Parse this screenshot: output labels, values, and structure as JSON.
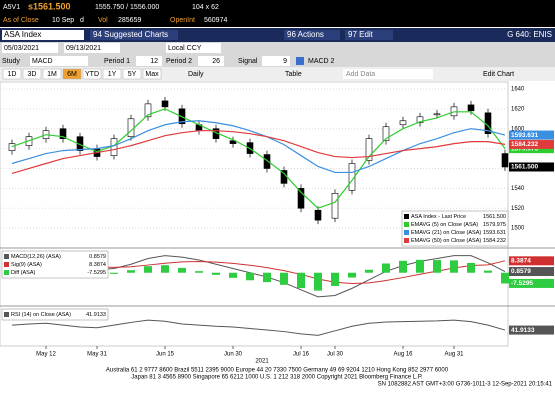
{
  "header": {
    "ticker": "A5V1",
    "last": "s1561.500",
    "bidask": "1555.750 / 1556.000",
    "size": "104 x 62",
    "asof": "As of Close",
    "date": "10 Sep",
    "flag": "d",
    "vol_label": "Vol",
    "vol": "285659",
    "oi_label": "OpenInt",
    "oi": "560974"
  },
  "toolbar": {
    "security": "ASA Index",
    "b1": "94 Suggested Charts",
    "b2": "96 Actions",
    "b3": "97 Edit",
    "right": "G 640: ENIS",
    "start": "05/03/2021",
    "end": "09/13/2021",
    "ccy": "Local CCY",
    "study_label": "Study",
    "study": "MACD",
    "p1_label": "Period 1",
    "p1": "12",
    "p2_label": "Period 2",
    "p2": "26",
    "sig_label": "Signal",
    "sig": "9",
    "study2": "MACD 2",
    "ranges": [
      "1D",
      "3D",
      "1M",
      "6M",
      "YTD",
      "1Y",
      "5Y",
      "Max"
    ],
    "freq": "Daily",
    "table": "Table",
    "add": "Add Data",
    "edit": "Edit Chart"
  },
  "chart_data": [
    {
      "type": "candlestick",
      "name": "ASA Index - Last Price",
      "last_label": "1561.500",
      "x_annotation": "2021",
      "categories": [
        null,
        null,
        "May 12",
        null,
        null,
        "May 31",
        null,
        null,
        null,
        "Jun 15",
        null,
        null,
        null,
        "Jun 30",
        null,
        null,
        null,
        "Jul 16",
        null,
        "Jul 30",
        null,
        null,
        null,
        "Aug 16",
        null,
        null,
        "Aug 31",
        null,
        null,
        null
      ],
      "open": [
        1578,
        1583,
        1590,
        1600,
        1592,
        1580,
        1573,
        1592,
        1612,
        1628,
        1620,
        1604,
        1600,
        1588,
        1586,
        1574,
        1558,
        1540,
        1518,
        1510,
        1538,
        1568,
        1588,
        1604,
        1606,
        1614,
        1613,
        1624,
        1616,
        1575
      ],
      "high": [
        1589,
        1596,
        1602,
        1604,
        1596,
        1584,
        1594,
        1614,
        1629,
        1632,
        1624,
        1608,
        1604,
        1592,
        1590,
        1578,
        1562,
        1544,
        1522,
        1539,
        1569,
        1594,
        1606,
        1612,
        1616,
        1619,
        1626,
        1628,
        1620,
        1579
      ],
      "low": [
        1574,
        1579,
        1586,
        1586,
        1574,
        1568,
        1569,
        1588,
        1608,
        1618,
        1601,
        1594,
        1586,
        1581,
        1571,
        1556,
        1541,
        1516,
        1504,
        1506,
        1534,
        1564,
        1584,
        1600,
        1602,
        1610,
        1609,
        1614,
        1591,
        1557.5
      ],
      "close": [
        1585,
        1592,
        1598,
        1590,
        1578,
        1572,
        1590,
        1610,
        1625,
        1622,
        1605,
        1598,
        1590,
        1585,
        1575,
        1560,
        1545,
        1520,
        1508,
        1535,
        1565,
        1590,
        1602,
        1608,
        1612,
        1615,
        1622,
        1618,
        1595,
        1561.5
      ],
      "series": [
        {
          "name": "EMAVG (5) on Close (ASA)",
          "color": "#2ecc2e",
          "last_label": "1579.975",
          "values": [
            1582,
            1588,
            1594,
            1592,
            1584,
            1577,
            1583,
            1598,
            1614,
            1620,
            1612,
            1604,
            1596,
            1589,
            1580,
            1568,
            1555,
            1536,
            1520,
            1526,
            1548,
            1572,
            1590,
            1600,
            1607,
            1611,
            1617,
            1617,
            1603,
            1579.975
          ]
        },
        {
          "name": "EMAVG (21) on Close (ASA)",
          "color": "#3a8fe0",
          "last_label": "1593.631",
          "values": [
            1565,
            1570,
            1575,
            1578,
            1579,
            1580,
            1583,
            1590,
            1598,
            1604,
            1607,
            1608,
            1606,
            1603,
            1598,
            1592,
            1584,
            1573,
            1562,
            1556,
            1556,
            1562,
            1570,
            1578,
            1585,
            1590,
            1596,
            1600,
            1598,
            1593.631
          ]
        },
        {
          "name": "EMAVG (50) on Close (ASA)",
          "color": "#e03a3a",
          "last_label": "1584.232",
          "values": [
            1555,
            1560,
            1565,
            1570,
            1573,
            1576,
            1579,
            1583,
            1588,
            1593,
            1596,
            1598,
            1598,
            1597,
            1595,
            1592,
            1588,
            1582,
            1576,
            1572,
            1571,
            1572,
            1575,
            1578,
            1580,
            1582,
            1585,
            1587,
            1587,
            1584.232
          ]
        }
      ],
      "ylim": [
        1482,
        1645
      ],
      "yticks": [
        1500,
        1520,
        1540,
        1560,
        1580,
        1600,
        1620,
        1640
      ],
      "grid": true
    },
    {
      "type": "line",
      "ylim": [
        -22,
        16
      ],
      "series": [
        {
          "name": "MACD(12,26) (ASA)",
          "color": "#555555",
          "last_label": "0.8579",
          "values": [
            5,
            6,
            7,
            6,
            4,
            2,
            3,
            6,
            10,
            12,
            11,
            9,
            6,
            3,
            0,
            -3,
            -7,
            -12,
            -17,
            -16,
            -11,
            -5,
            1,
            5,
            8,
            10,
            12,
            12,
            7,
            0.8579
          ]
        },
        {
          "name": "Sig(9) (ASA)",
          "color": "#d03030",
          "last_label": "8.3874",
          "values": [
            3,
            3.6,
            4.3,
            4.6,
            4.5,
            4,
            3.8,
            4.2,
            5.4,
            6.7,
            7.6,
            7.9,
            7.5,
            6.6,
            5.3,
            3.6,
            1.5,
            -1.2,
            -4.4,
            -6.7,
            -7.6,
            -7.1,
            -5.5,
            -3.4,
            -1.1,
            1.1,
            3.3,
            5.1,
            5.5,
            8.3874
          ]
        },
        {
          "name": "Diff (ASA)",
          "color": "#2ecc40",
          "kind": "bar",
          "last_label": "-7.5295",
          "values": [
            2,
            2.4,
            2.7,
            1.4,
            -0.5,
            -2,
            -0.8,
            1.8,
            4.6,
            5.3,
            3.4,
            1.1,
            -1.5,
            -3.6,
            -5.3,
            -6.6,
            -8.5,
            -10.8,
            -12.6,
            -9.3,
            -3.4,
            2.1,
            6.5,
            8.4,
            9.1,
            8.9,
            8.7,
            6.9,
            1.5,
            -7.5295
          ]
        }
      ]
    },
    {
      "type": "line",
      "ylim": [
        0,
        100
      ],
      "series": [
        {
          "name": "RSI (14) on Close (ASA)",
          "color": "#555555",
          "last_label": "41.9133",
          "values": [
            55,
            58,
            60,
            55,
            50,
            48,
            55,
            62,
            68,
            65,
            58,
            55,
            52,
            50,
            46,
            42,
            38,
            32,
            28,
            40,
            52,
            60,
            63,
            64,
            65,
            66,
            68,
            64,
            55,
            41.9133
          ]
        }
      ]
    }
  ],
  "footer": [
    "Australia 61 2 9777 8600 Brazil 5511 2395 9000 Europe 44 20 7330 7500 Germany 49 69 9204 1210 Hong Kong 852 2977 6000",
    "Japan 81 3 4565 8900      Singapore 65 6212 1000      U.S. 1 212 318 2000      Copyright 2021 Bloomberg Finance L.P.",
    "SN 1082882 AST  GMT+3:00 G736-1011-3 12-Sep-2021 20:15:41"
  ]
}
